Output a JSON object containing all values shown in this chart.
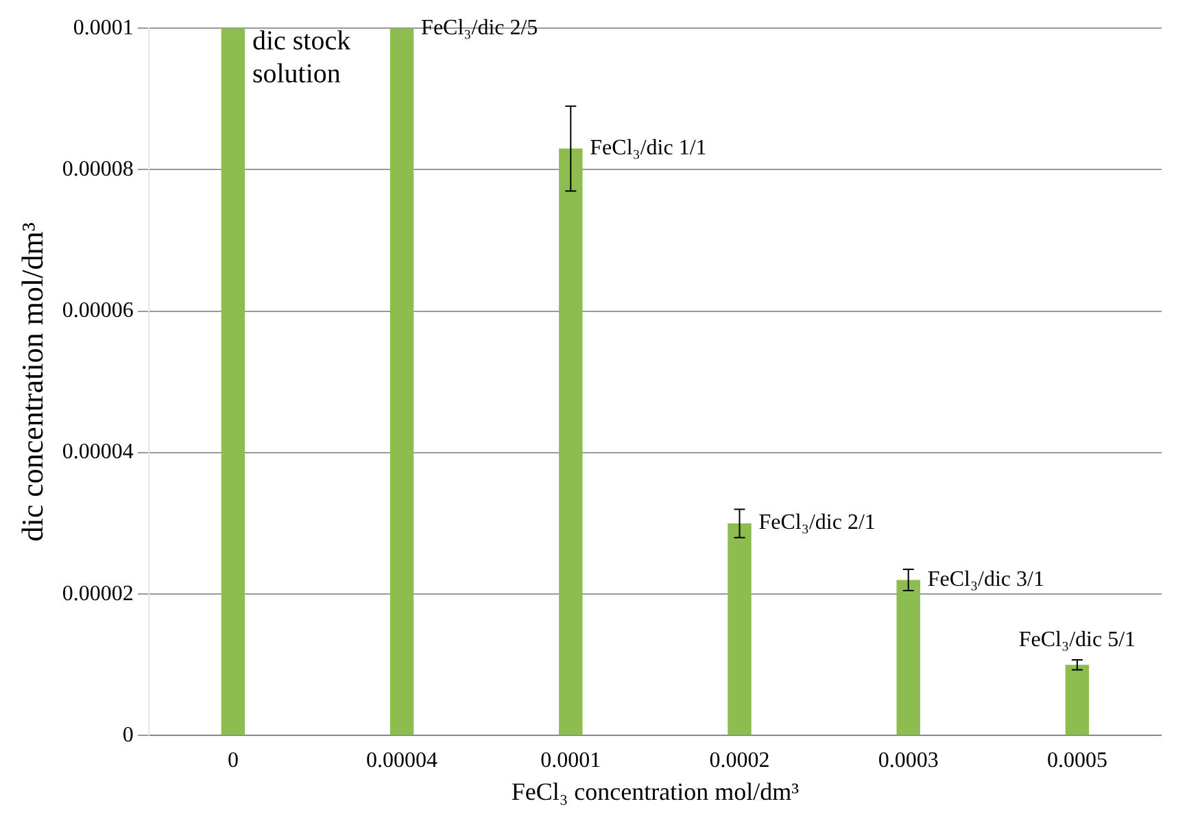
{
  "chart_data": {
    "type": "bar",
    "xlabel": "FeCl₃ concentration mol/dm³",
    "ylabel": "dic concentration mol/dm³",
    "categories": [
      "0",
      "0.00004",
      "0.0001",
      "0.0002",
      "0.0003",
      "0.0005"
    ],
    "values": [
      0.0001,
      0.0001,
      8.3e-05,
      3e-05,
      2.2e-05,
      1e-05
    ],
    "errors": [
      null,
      null,
      6e-06,
      2e-06,
      1.5e-06,
      7e-07
    ],
    "color": "#8cbd4e",
    "ylim": [
      0,
      0.0001
    ],
    "yticks": [
      0,
      {
        "value": 2e-05,
        "label": "0.00002"
      },
      {
        "value": 4e-05,
        "label": "0.00004"
      },
      {
        "value": 6e-05,
        "label": "0.00006"
      },
      {
        "value": 8e-05,
        "label": "0.00008"
      },
      0.0001
    ],
    "grid": "y",
    "legend": false,
    "annotations": [
      {
        "text": "dic stock solution",
        "x": "0",
        "y": 0.0001
      },
      {
        "text": "FeCl₃/dic 2/5",
        "x": "0.00004",
        "y": 0.0001
      },
      {
        "text": "FeCl₃/dic 1/1",
        "x": "0.0001",
        "y": 8.3e-05
      },
      {
        "text": "FeCl₃/dic 2/1",
        "x": "0.0002",
        "y": 3e-05
      },
      {
        "text": "FeCl₃/dic 3/1",
        "x": "0.0003",
        "y": 2.2e-05
      },
      {
        "text": "FeCl₃/dic 5/1",
        "x": "0.0005",
        "y": 1e-05
      }
    ]
  }
}
